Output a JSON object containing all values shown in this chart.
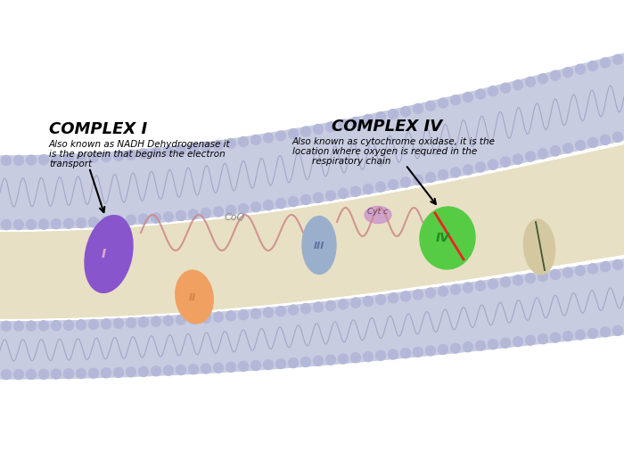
{
  "bg_color": "#ffffff",
  "membrane_fill": "#c8cce0",
  "interior_fill": "#e8e0c5",
  "complex1_color": "#8855cc",
  "complex1_outline": "#00aa88",
  "complex2_color": "#f0a060",
  "complex3_color": "#9aafcc",
  "complex4_color": "#55cc44",
  "complex4_outline": "#ee3333",
  "cytc_color": "#cc99cc",
  "complex5_color": "#d4c8a0",
  "complex5_outline": "#556644",
  "wave_color": "#cc8888",
  "head_color": "#b4b8d8",
  "head_edge": "#8890b8",
  "label_complex1": "COMPLEX I",
  "label_complex4": "COMPLEX IV",
  "desc_c1_l1": "Also known as NADH Dehydrogenase it",
  "desc_c1_l2": "is the protein that begins the electron",
  "desc_c1_l3": "transport",
  "desc_c4_l1": "Also known as cytochrome oxidase, it is the",
  "desc_c4_l2": "location where oxygen is requred in the",
  "desc_c4_l3": "respiratory chain",
  "label_coq": "CoQ",
  "label_cytc": "Cyt c",
  "roman_I": "I",
  "roman_II": "II",
  "roman_III": "III",
  "roman_IV": "IV",
  "figw": 7.0,
  "figh": 5.25,
  "dpi": 100
}
